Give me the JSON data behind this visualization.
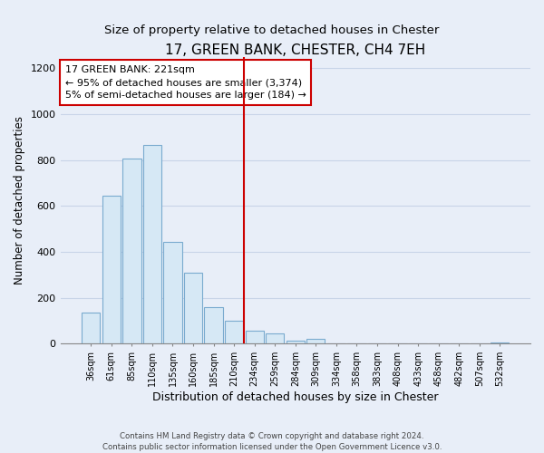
{
  "title": "17, GREEN BANK, CHESTER, CH4 7EH",
  "subtitle": "Size of property relative to detached houses in Chester",
  "xlabel": "Distribution of detached houses by size in Chester",
  "ylabel": "Number of detached properties",
  "bar_labels": [
    "36sqm",
    "61sqm",
    "85sqm",
    "110sqm",
    "135sqm",
    "160sqm",
    "185sqm",
    "210sqm",
    "234sqm",
    "259sqm",
    "284sqm",
    "309sqm",
    "334sqm",
    "358sqm",
    "383sqm",
    "408sqm",
    "433sqm",
    "458sqm",
    "482sqm",
    "507sqm",
    "532sqm"
  ],
  "bar_values": [
    135,
    645,
    805,
    865,
    445,
    310,
    160,
    100,
    55,
    45,
    15,
    20,
    0,
    0,
    0,
    0,
    0,
    0,
    0,
    0,
    5
  ],
  "bar_color": "#d6e8f5",
  "bar_edge_color": "#7aabcf",
  "vline_x_index": 7.5,
  "vline_color": "#cc0000",
  "annotation_title": "17 GREEN BANK: 221sqm",
  "annotation_line1": "← 95% of detached houses are smaller (3,374)",
  "annotation_line2": "5% of semi-detached houses are larger (184) →",
  "annotation_box_color": "#ffffff",
  "annotation_box_edgecolor": "#cc0000",
  "ylim": [
    0,
    1250
  ],
  "yticks": [
    0,
    200,
    400,
    600,
    800,
    1000,
    1200
  ],
  "footer1": "Contains HM Land Registry data © Crown copyright and database right 2024.",
  "footer2": "Contains public sector information licensed under the Open Government Licence v3.0.",
  "bg_color": "#e8eef8",
  "grid_color": "#c8d4e8",
  "title_fontsize": 11,
  "subtitle_fontsize": 9.5,
  "ylabel_fontsize": 8.5,
  "xlabel_fontsize": 9
}
